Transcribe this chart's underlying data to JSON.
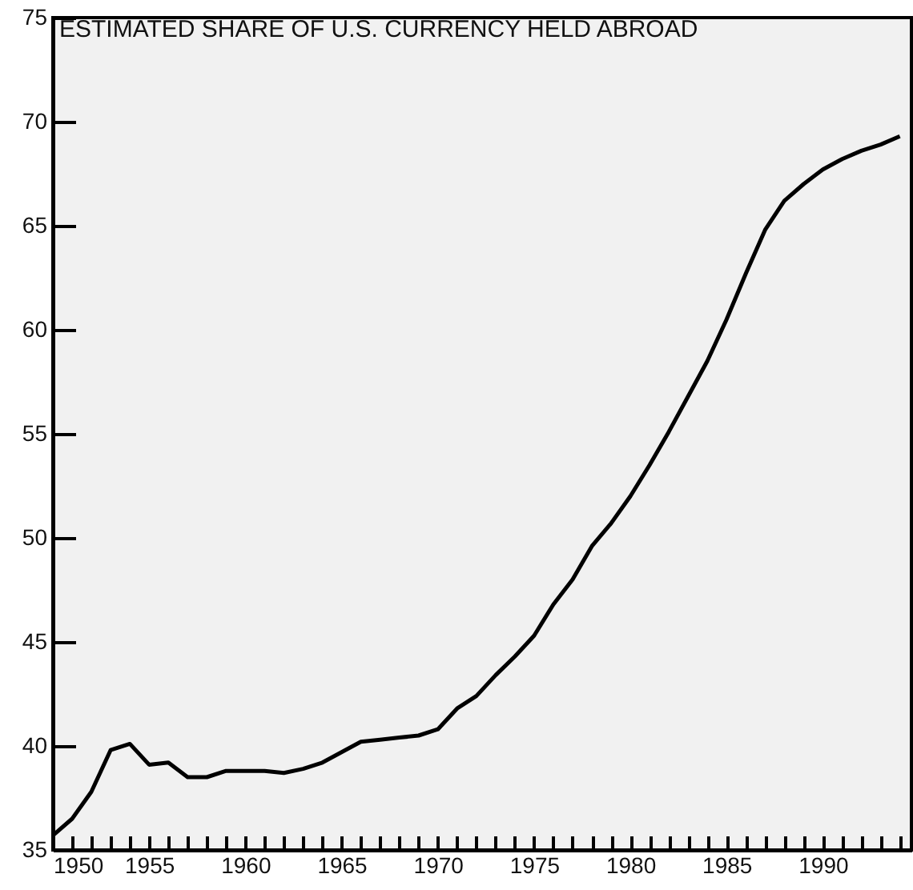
{
  "chart_data": {
    "type": "line",
    "title": "ESTIMATED SHARE OF U.S. CURRENCY HELD ABROAD",
    "x": [
      1950,
      1951,
      1952,
      1953,
      1954,
      1955,
      1956,
      1957,
      1958,
      1959,
      1960,
      1961,
      1962,
      1963,
      1964,
      1965,
      1966,
      1967,
      1968,
      1969,
      1970,
      1971,
      1972,
      1973,
      1974,
      1975,
      1976,
      1977,
      1978,
      1979,
      1980,
      1981,
      1982,
      1983,
      1984,
      1985,
      1986,
      1987,
      1988,
      1989,
      1990,
      1991,
      1992,
      1993,
      1994
    ],
    "series": [
      {
        "color": "#000000",
        "values": [
          35.7,
          36.5,
          37.8,
          39.8,
          40.1,
          39.1,
          39.2,
          38.5,
          38.5,
          38.8,
          38.8,
          38.8,
          38.7,
          38.9,
          39.2,
          39.7,
          40.2,
          40.3,
          40.4,
          40.5,
          40.8,
          41.8,
          42.4,
          43.4,
          44.3,
          45.3,
          46.8,
          48.0,
          49.6,
          50.7,
          52.0,
          53.5,
          55.1,
          56.8,
          58.5,
          60.5,
          62.7,
          64.8,
          66.2,
          67.0,
          67.7,
          68.2,
          68.6,
          68.9,
          69.3
        ]
      }
    ],
    "xlim": [
      1950,
      1994.6
    ],
    "xticks": [
      1950,
      {
        "value": 1951,
        "label": null
      },
      {
        "value": 1952,
        "label": null
      },
      {
        "value": 1953,
        "label": null
      },
      {
        "value": 1954,
        "label": null
      },
      1955,
      {
        "value": 1956,
        "label": null
      },
      {
        "value": 1957,
        "label": null
      },
      {
        "value": 1958,
        "label": null
      },
      {
        "value": 1959,
        "label": null
      },
      1960,
      {
        "value": 1961,
        "label": null
      },
      {
        "value": 1962,
        "label": null
      },
      {
        "value": 1963,
        "label": null
      },
      {
        "value": 1964,
        "label": null
      },
      1965,
      {
        "value": 1966,
        "label": null
      },
      {
        "value": 1967,
        "label": null
      },
      {
        "value": 1968,
        "label": null
      },
      {
        "value": 1969,
        "label": null
      },
      1970,
      {
        "value": 1971,
        "label": null
      },
      {
        "value": 1972,
        "label": null
      },
      {
        "value": 1973,
        "label": null
      },
      {
        "value": 1974,
        "label": null
      },
      1975,
      {
        "value": 1976,
        "label": null
      },
      {
        "value": 1977,
        "label": null
      },
      {
        "value": 1978,
        "label": null
      },
      {
        "value": 1979,
        "label": null
      },
      1980,
      {
        "value": 1981,
        "label": null
      },
      {
        "value": 1982,
        "label": null
      },
      {
        "value": 1983,
        "label": null
      },
      {
        "value": 1984,
        "label": null
      },
      1985,
      {
        "value": 1986,
        "label": null
      },
      {
        "value": 1987,
        "label": null
      },
      {
        "value": 1988,
        "label": null
      },
      {
        "value": 1989,
        "label": null
      },
      1990,
      {
        "value": 1991,
        "label": null
      },
      {
        "value": 1992,
        "label": null
      },
      {
        "value": 1993,
        "label": null
      },
      {
        "value": 1994,
        "label": null
      }
    ],
    "ylim": [
      35,
      75
    ],
    "yticks": [
      35,
      40,
      45,
      50,
      55,
      60,
      65,
      70,
      75
    ],
    "grid": false,
    "marker": "none",
    "line_style": "solid"
  }
}
